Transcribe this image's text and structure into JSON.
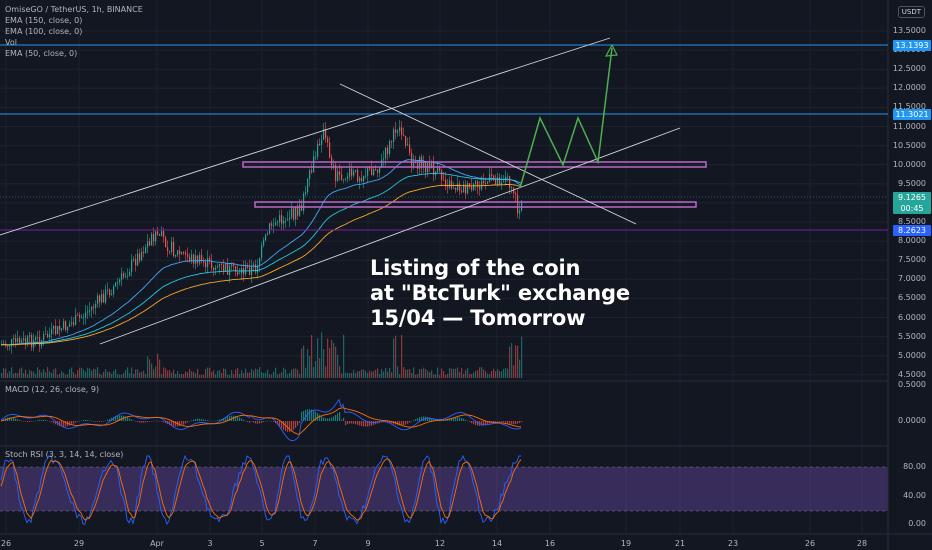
{
  "header": {
    "symbol_line": "OmiseGO / TetherUS, 1h, BINANCE",
    "indicators": [
      "EMA (150, close, 0)",
      "EMA (100, close, 0)",
      "Vol",
      "EMA (50, close, 0)"
    ],
    "currency": "USDT"
  },
  "panes": {
    "macd_label": "MACD (12, 26, close, 9)",
    "rsi_label": "Stoch RSI (3, 3, 14, 14, close)"
  },
  "annotation": {
    "line1": "Listing of the coin",
    "line2": "at \"BtcTurk\" exchange",
    "line3": "15/04 — Tomorrow"
  },
  "price_axis": [
    "13.5000",
    "13.0000",
    "12.5000",
    "12.0000",
    "11.5000",
    "11.0000",
    "10.5000",
    "10.0000",
    "9.5000",
    "9.0000",
    "8.5000",
    "8.0000",
    "7.5000",
    "7.0000",
    "6.5000",
    "6.0000",
    "5.5000",
    "5.0000",
    "4.5000"
  ],
  "macd_axis": [
    "0.5000",
    "0.0000"
  ],
  "rsi_axis": [
    "80.00",
    "40.00",
    "0.00"
  ],
  "x_axis": [
    "26",
    "29",
    "Apr",
    "3",
    "5",
    "7",
    "9",
    "12",
    "14",
    "16",
    "19",
    "21",
    "23",
    "26",
    "28"
  ],
  "price_tags": [
    {
      "value": "13.1393",
      "color": "#2196f3"
    },
    {
      "value": "11.3021",
      "color": "#2196f3"
    },
    {
      "value": "9.1265",
      "sub": "00:45",
      "color": "#26a69a"
    },
    {
      "value": "8.2623",
      "color": "#2962ff"
    }
  ],
  "colors": {
    "background": "#131722",
    "up": "#26a69a",
    "down": "#ef5350",
    "ema50": "#42a5f5",
    "ema100": "#26c6da",
    "ema150": "#f9a825",
    "support": "#9c27b0",
    "hline": "#2962ff",
    "projection": "#4caf50",
    "rsi_band": "#7e57c2"
  }
}
